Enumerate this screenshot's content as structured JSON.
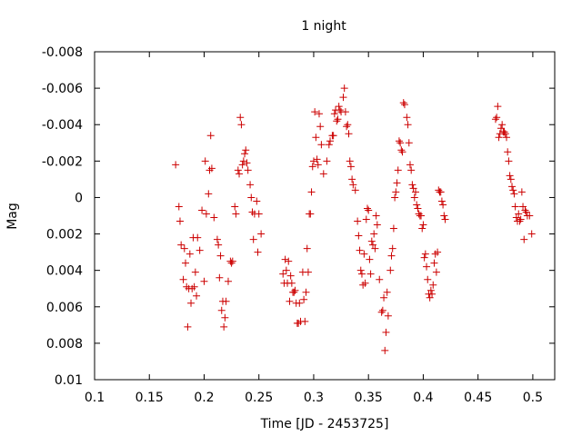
{
  "chart_data": {
    "type": "scatter",
    "title": "1 night",
    "xlabel": "Time [JD - 2453725]",
    "ylabel": "Mag",
    "xlim": [
      0.1,
      0.52
    ],
    "ylim": [
      -0.008,
      0.01
    ],
    "y_inverted": true,
    "grid": false,
    "marker": "plus",
    "marker_color": "#cc0000",
    "x_ticks": [
      {
        "value": 0.1,
        "label": "0.1"
      },
      {
        "value": 0.15,
        "label": "0.15"
      },
      {
        "value": 0.2,
        "label": "0.2"
      },
      {
        "value": 0.25,
        "label": "0.25"
      },
      {
        "value": 0.3,
        "label": "0.3"
      },
      {
        "value": 0.35,
        "label": "0.35"
      },
      {
        "value": 0.4,
        "label": "0.4"
      },
      {
        "value": 0.45,
        "label": "0.45"
      },
      {
        "value": 0.5,
        "label": "0.5"
      }
    ],
    "y_ticks": [
      {
        "value": -0.008,
        "label": "-0.008"
      },
      {
        "value": -0.006,
        "label": "-0.006"
      },
      {
        "value": -0.004,
        "label": "-0.004"
      },
      {
        "value": -0.002,
        "label": "-0.002"
      },
      {
        "value": 0,
        "label": "0"
      },
      {
        "value": 0.002,
        "label": "0.002"
      },
      {
        "value": 0.004,
        "label": "0.004"
      },
      {
        "value": 0.006,
        "label": "0.006"
      },
      {
        "value": 0.008,
        "label": "0.008"
      },
      {
        "value": 0.01,
        "label": "0.01"
      }
    ],
    "series": [
      {
        "points": [
          [
            0.174,
            -0.0018
          ],
          [
            0.177,
            0.0005
          ],
          [
            0.178,
            0.0013
          ],
          [
            0.179,
            0.0026
          ],
          [
            0.181,
            0.0045
          ],
          [
            0.182,
            0.0028
          ],
          [
            0.183,
            0.0036
          ],
          [
            0.184,
            0.0049
          ],
          [
            0.185,
            0.0071
          ],
          [
            0.186,
            0.005
          ],
          [
            0.187,
            0.0031
          ],
          [
            0.188,
            0.0058
          ],
          [
            0.189,
            0.005
          ],
          [
            0.19,
            0.0022
          ],
          [
            0.191,
            0.0049
          ],
          [
            0.192,
            0.0041
          ],
          [
            0.193,
            0.0054
          ],
          [
            0.194,
            0.0022
          ],
          [
            0.196,
            0.0029
          ],
          [
            0.198,
            0.0007
          ],
          [
            0.2,
            0.0046
          ],
          [
            0.201,
            -0.002
          ],
          [
            0.202,
            0.0009
          ],
          [
            0.204,
            -0.0002
          ],
          [
            0.205,
            -0.0015
          ],
          [
            0.206,
            -0.0034
          ],
          [
            0.207,
            -0.0016
          ],
          [
            0.209,
            0.0011
          ],
          [
            0.212,
            0.0023
          ],
          [
            0.213,
            0.0026
          ],
          [
            0.214,
            0.0044
          ],
          [
            0.215,
            0.0032
          ],
          [
            0.216,
            0.0062
          ],
          [
            0.217,
            0.0057
          ],
          [
            0.218,
            0.0071
          ],
          [
            0.219,
            0.0066
          ],
          [
            0.22,
            0.0057
          ],
          [
            0.222,
            0.0046
          ],
          [
            0.224,
            0.0035
          ],
          [
            0.225,
            0.0036
          ],
          [
            0.226,
            0.0035
          ],
          [
            0.228,
            0.0005
          ],
          [
            0.229,
            0.0009
          ],
          [
            0.231,
            -0.0015
          ],
          [
            0.232,
            -0.0013
          ],
          [
            0.233,
            -0.0044
          ],
          [
            0.234,
            -0.004
          ],
          [
            0.235,
            -0.0018
          ],
          [
            0.236,
            -0.002
          ],
          [
            0.237,
            -0.0024
          ],
          [
            0.238,
            -0.0026
          ],
          [
            0.239,
            -0.0019
          ],
          [
            0.24,
            -0.0015
          ],
          [
            0.242,
            -0.0007
          ],
          [
            0.243,
            0.0
          ],
          [
            0.244,
            0.0008
          ],
          [
            0.245,
            0.0023
          ],
          [
            0.246,
            0.0009
          ],
          [
            0.248,
            0.0002
          ],
          [
            0.249,
            0.003
          ],
          [
            0.25,
            0.0009
          ],
          [
            0.252,
            0.002
          ],
          [
            0.272,
            0.0042
          ],
          [
            0.273,
            0.0047
          ],
          [
            0.274,
            0.0034
          ],
          [
            0.275,
            0.004
          ],
          [
            0.276,
            0.0047
          ],
          [
            0.277,
            0.0035
          ],
          [
            0.278,
            0.0057
          ],
          [
            0.279,
            0.0043
          ],
          [
            0.28,
            0.0047
          ],
          [
            0.281,
            0.0052
          ],
          [
            0.282,
            0.0052
          ],
          [
            0.283,
            0.0051
          ],
          [
            0.284,
            0.0058
          ],
          [
            0.285,
            0.0069
          ],
          [
            0.286,
            0.0069
          ],
          [
            0.287,
            0.0058
          ],
          [
            0.288,
            0.0068
          ],
          [
            0.29,
            0.0041
          ],
          [
            0.291,
            0.0056
          ],
          [
            0.292,
            0.0068
          ],
          [
            0.293,
            0.0052
          ],
          [
            0.294,
            0.0028
          ],
          [
            0.295,
            0.0041
          ],
          [
            0.296,
            0.0009
          ],
          [
            0.297,
            0.0009
          ],
          [
            0.298,
            -0.0003
          ],
          [
            0.299,
            -0.0017
          ],
          [
            0.3,
            -0.002
          ],
          [
            0.301,
            -0.0047
          ],
          [
            0.302,
            -0.0033
          ],
          [
            0.303,
            -0.0021
          ],
          [
            0.304,
            -0.0018
          ],
          [
            0.305,
            -0.0046
          ],
          [
            0.306,
            -0.0039
          ],
          [
            0.307,
            -0.0029
          ],
          [
            0.309,
            -0.0013
          ],
          [
            0.312,
            -0.002
          ],
          [
            0.314,
            -0.0029
          ],
          [
            0.315,
            -0.0031
          ],
          [
            0.317,
            -0.0034
          ],
          [
            0.318,
            -0.0034
          ],
          [
            0.319,
            -0.0046
          ],
          [
            0.32,
            -0.0048
          ],
          [
            0.321,
            -0.0042
          ],
          [
            0.322,
            -0.0043
          ],
          [
            0.323,
            -0.005
          ],
          [
            0.324,
            -0.0048
          ],
          [
            0.325,
            -0.0047
          ],
          [
            0.327,
            -0.0055
          ],
          [
            0.328,
            -0.006
          ],
          [
            0.329,
            -0.0047
          ],
          [
            0.33,
            -0.0039
          ],
          [
            0.331,
            -0.004
          ],
          [
            0.332,
            -0.0035
          ],
          [
            0.333,
            -0.002
          ],
          [
            0.334,
            -0.0017
          ],
          [
            0.335,
            -0.001
          ],
          [
            0.336,
            -0.0007
          ],
          [
            0.338,
            -0.0004
          ],
          [
            0.34,
            0.0013
          ],
          [
            0.341,
            0.0021
          ],
          [
            0.342,
            0.0029
          ],
          [
            0.343,
            0.004
          ],
          [
            0.344,
            0.0042
          ],
          [
            0.345,
            0.0048
          ],
          [
            0.346,
            0.0031
          ],
          [
            0.347,
            0.0047
          ],
          [
            0.348,
            0.0012
          ],
          [
            0.349,
            0.0006
          ],
          [
            0.35,
            0.0007
          ],
          [
            0.351,
            0.0034
          ],
          [
            0.352,
            0.0042
          ],
          [
            0.353,
            0.0024
          ],
          [
            0.354,
            0.0026
          ],
          [
            0.355,
            0.002
          ],
          [
            0.356,
            0.0028
          ],
          [
            0.357,
            0.001
          ],
          [
            0.358,
            0.0015
          ],
          [
            0.36,
            0.0045
          ],
          [
            0.362,
            0.0063
          ],
          [
            0.363,
            0.0062
          ],
          [
            0.364,
            0.0055
          ],
          [
            0.365,
            0.0084
          ],
          [
            0.366,
            0.0074
          ],
          [
            0.367,
            0.0052
          ],
          [
            0.368,
            0.0065
          ],
          [
            0.37,
            0.004
          ],
          [
            0.371,
            0.0032
          ],
          [
            0.372,
            0.0028
          ],
          [
            0.373,
            0.0017
          ],
          [
            0.374,
            0.0
          ],
          [
            0.375,
            -0.0003
          ],
          [
            0.376,
            -0.0008
          ],
          [
            0.377,
            -0.0015
          ],
          [
            0.378,
            -0.0031
          ],
          [
            0.379,
            -0.003
          ],
          [
            0.38,
            -0.0026
          ],
          [
            0.381,
            -0.0025
          ],
          [
            0.382,
            -0.0052
          ],
          [
            0.383,
            -0.0051
          ],
          [
            0.385,
            -0.0044
          ],
          [
            0.386,
            -0.004
          ],
          [
            0.387,
            -0.003
          ],
          [
            0.388,
            -0.0018
          ],
          [
            0.389,
            -0.0015
          ],
          [
            0.39,
            -0.0007
          ],
          [
            0.391,
            -0.0005
          ],
          [
            0.392,
            0.0
          ],
          [
            0.393,
            -0.0003
          ],
          [
            0.394,
            0.0004
          ],
          [
            0.395,
            0.0006
          ],
          [
            0.396,
            0.0009
          ],
          [
            0.397,
            0.001
          ],
          [
            0.398,
            0.001
          ],
          [
            0.399,
            0.0017
          ],
          [
            0.4,
            0.0015
          ],
          [
            0.401,
            0.0033
          ],
          [
            0.402,
            0.0031
          ],
          [
            0.403,
            0.0038
          ],
          [
            0.404,
            0.0045
          ],
          [
            0.405,
            0.0053
          ],
          [
            0.406,
            0.0055
          ],
          [
            0.407,
            0.0051
          ],
          [
            0.408,
            0.0053
          ],
          [
            0.409,
            0.0048
          ],
          [
            0.41,
            0.0036
          ],
          [
            0.411,
            0.0031
          ],
          [
            0.412,
            0.0041
          ],
          [
            0.413,
            0.003
          ],
          [
            0.414,
            -0.0004
          ],
          [
            0.415,
            -0.0003
          ],
          [
            0.416,
            -0.0003
          ],
          [
            0.417,
            0.0002
          ],
          [
            0.418,
            0.0004
          ],
          [
            0.419,
            0.001
          ],
          [
            0.42,
            0.0012
          ],
          [
            0.466,
            -0.0043
          ],
          [
            0.467,
            -0.0044
          ],
          [
            0.468,
            -0.005
          ],
          [
            0.469,
            -0.0033
          ],
          [
            0.47,
            -0.0035
          ],
          [
            0.471,
            -0.0038
          ],
          [
            0.472,
            -0.004
          ],
          [
            0.473,
            -0.0036
          ],
          [
            0.474,
            -0.0036
          ],
          [
            0.475,
            -0.0035
          ],
          [
            0.476,
            -0.0033
          ],
          [
            0.477,
            -0.0025
          ],
          [
            0.478,
            -0.002
          ],
          [
            0.479,
            -0.0012
          ],
          [
            0.48,
            -0.001
          ],
          [
            0.481,
            -0.0006
          ],
          [
            0.482,
            -0.0004
          ],
          [
            0.483,
            -0.0002
          ],
          [
            0.484,
            0.0005
          ],
          [
            0.485,
            0.0011
          ],
          [
            0.486,
            0.0013
          ],
          [
            0.487,
            0.0009
          ],
          [
            0.488,
            0.0013
          ],
          [
            0.489,
            0.0012
          ],
          [
            0.49,
            -0.0003
          ],
          [
            0.491,
            0.0005
          ],
          [
            0.492,
            0.0023
          ],
          [
            0.493,
            0.0007
          ],
          [
            0.494,
            0.0008
          ],
          [
            0.495,
            0.001
          ],
          [
            0.497,
            0.001
          ],
          [
            0.499,
            0.002
          ]
        ]
      }
    ]
  }
}
